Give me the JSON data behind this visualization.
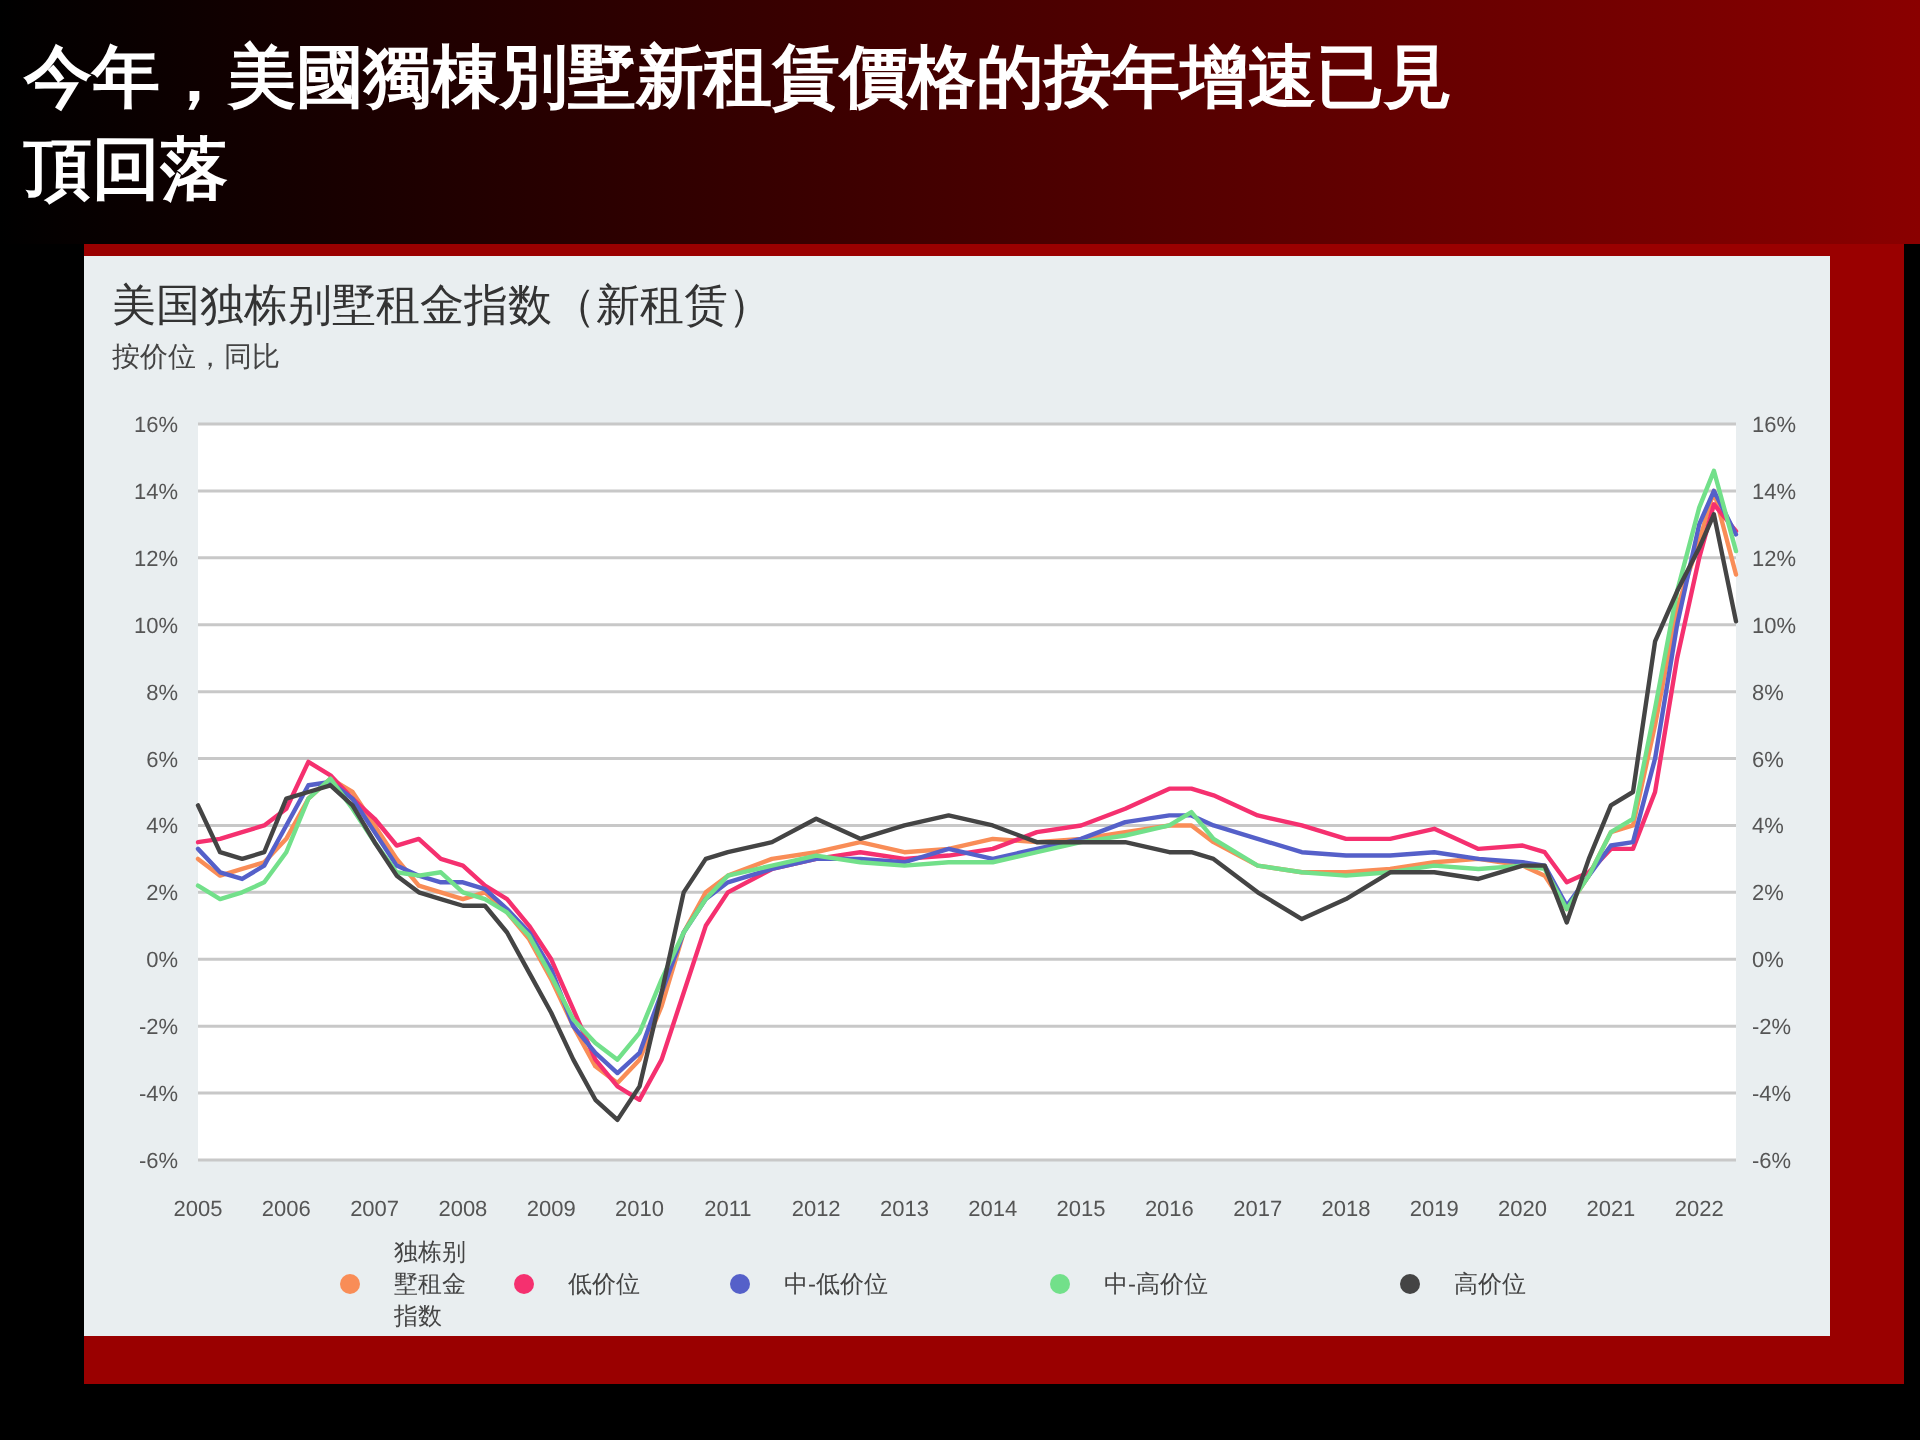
{
  "chart_data": {
    "type": "line",
    "title": "今年，美國獨棟別墅新租賃價格的按年增速已見頂回落",
    "subtitle": "美国独栋别墅租金指数（新租赁）",
    "annotations": [
      "按价位，同比"
    ],
    "xlim": [
      "2005-01",
      "2022-06"
    ],
    "xticks": [
      "2005",
      "2006",
      "2007",
      "2008",
      "2009",
      "2010",
      "2011",
      "2012",
      "2013",
      "2014",
      "2015",
      "2016",
      "2017",
      "2018",
      "2019",
      "2020",
      "2021",
      "2022"
    ],
    "ylim": [
      -6,
      16
    ],
    "yticks": [
      {
        "value": -6,
        "label": "-6%"
      },
      {
        "value": -4,
        "label": "-4%"
      },
      {
        "value": -2,
        "label": "-2%"
      },
      {
        "value": 0,
        "label": "0%"
      },
      {
        "value": 2,
        "label": "2%"
      },
      {
        "value": 4,
        "label": "4%"
      },
      {
        "value": 6,
        "label": "6%"
      },
      {
        "value": 8,
        "label": "8%"
      },
      {
        "value": 10,
        "label": "10%"
      },
      {
        "value": 12,
        "label": "12%"
      },
      {
        "value": 14,
        "label": "14%"
      },
      {
        "value": 16,
        "label": "16%"
      }
    ],
    "y2lim": [
      -6,
      16
    ],
    "y2ticks": [
      {
        "value": -6,
        "label": "-6%"
      },
      {
        "value": -4,
        "label": "-4%"
      },
      {
        "value": -2,
        "label": "-2%"
      },
      {
        "value": 0,
        "label": "0%"
      },
      {
        "value": 2,
        "label": "2%"
      },
      {
        "value": 4,
        "label": "4%"
      },
      {
        "value": 6,
        "label": "6%"
      },
      {
        "value": 8,
        "label": "8%"
      },
      {
        "value": 10,
        "label": "10%"
      },
      {
        "value": 12,
        "label": "12%"
      },
      {
        "value": 14,
        "label": "14%"
      },
      {
        "value": 16,
        "label": "16%"
      }
    ],
    "grid": "y",
    "legend": "bottom",
    "marker": "none",
    "line_style": "solid",
    "x": [
      "2005-01",
      "2005-04",
      "2005-07",
      "2005-10",
      "2006-01",
      "2006-04",
      "2006-07",
      "2006-10",
      "2007-01",
      "2007-04",
      "2007-07",
      "2007-10",
      "2008-01",
      "2008-04",
      "2008-07",
      "2008-10",
      "2009-01",
      "2009-04",
      "2009-07",
      "2009-10",
      "2010-01",
      "2010-04",
      "2010-07",
      "2010-10",
      "2011-01",
      "2011-07",
      "2012-01",
      "2012-07",
      "2013-01",
      "2013-07",
      "2014-01",
      "2014-07",
      "2015-01",
      "2015-07",
      "2016-01",
      "2016-04",
      "2016-07",
      "2017-01",
      "2017-07",
      "2018-01",
      "2018-07",
      "2019-01",
      "2019-07",
      "2020-01",
      "2020-04",
      "2020-07",
      "2020-10",
      "2021-01",
      "2021-04",
      "2021-07",
      "2021-10",
      "2022-01",
      "2022-03",
      "2022-06"
    ],
    "series": [
      {
        "name": "独栋别墅租金指数",
        "color": "#f98d57",
        "values": [
          3.0,
          2.5,
          2.7,
          2.9,
          3.6,
          4.8,
          5.4,
          5.0,
          4.0,
          3.0,
          2.2,
          2.0,
          1.8,
          2.0,
          1.4,
          0.6,
          -0.6,
          -2.0,
          -3.2,
          -3.7,
          -3.0,
          -1.4,
          0.8,
          2.0,
          2.5,
          3.0,
          3.2,
          3.5,
          3.2,
          3.3,
          3.6,
          3.5,
          3.6,
          3.8,
          4.0,
          4.0,
          3.5,
          2.8,
          2.6,
          2.6,
          2.7,
          2.9,
          3.0,
          2.8,
          2.5,
          1.5,
          2.5,
          3.8,
          4.0,
          7.0,
          10.5,
          12.5,
          14.0,
          11.5
        ]
      },
      {
        "name": "低价位",
        "color": "#f5306f",
        "values": [
          3.5,
          3.6,
          3.8,
          4.0,
          4.5,
          5.9,
          5.5,
          4.8,
          4.2,
          3.4,
          3.6,
          3.0,
          2.8,
          2.2,
          1.8,
          1.0,
          0.0,
          -1.5,
          -3.0,
          -3.8,
          -4.2,
          -3.0,
          -1.0,
          1.0,
          2.0,
          2.7,
          3.0,
          3.2,
          3.0,
          3.1,
          3.3,
          3.8,
          4.0,
          4.5,
          5.1,
          5.1,
          4.9,
          4.3,
          4.0,
          3.6,
          3.6,
          3.9,
          3.3,
          3.4,
          3.2,
          2.3,
          2.6,
          3.3,
          3.3,
          5.0,
          9.0,
          12.0,
          13.6,
          12.8
        ]
      },
      {
        "name": "中-低价位",
        "color": "#5560c9",
        "values": [
          3.3,
          2.6,
          2.4,
          2.8,
          4.0,
          5.2,
          5.3,
          4.8,
          3.8,
          2.8,
          2.5,
          2.3,
          2.3,
          2.1,
          1.5,
          0.8,
          -0.3,
          -2.0,
          -2.8,
          -3.4,
          -2.8,
          -1.0,
          0.8,
          1.8,
          2.3,
          2.7,
          3.0,
          3.0,
          2.9,
          3.3,
          3.0,
          3.3,
          3.6,
          4.1,
          4.3,
          4.3,
          4.0,
          3.6,
          3.2,
          3.1,
          3.1,
          3.2,
          3.0,
          2.9,
          2.8,
          1.6,
          2.5,
          3.4,
          3.5,
          6.0,
          10.0,
          13.0,
          14.0,
          12.7
        ]
      },
      {
        "name": "中-高价位",
        "color": "#72e08a",
        "values": [
          2.2,
          1.8,
          2.0,
          2.3,
          3.2,
          4.8,
          5.4,
          4.5,
          3.5,
          2.6,
          2.5,
          2.6,
          2.0,
          1.8,
          1.4,
          0.7,
          -0.5,
          -1.8,
          -2.5,
          -3.0,
          -2.2,
          -0.6,
          0.8,
          1.8,
          2.5,
          2.8,
          3.1,
          2.9,
          2.8,
          2.9,
          2.9,
          3.2,
          3.5,
          3.7,
          4.0,
          4.4,
          3.6,
          2.8,
          2.6,
          2.5,
          2.6,
          2.8,
          2.7,
          2.8,
          2.7,
          1.5,
          2.5,
          3.8,
          4.2,
          7.5,
          11.0,
          13.5,
          14.6,
          12.2
        ]
      },
      {
        "name": "高价位",
        "color": "#444444",
        "values": [
          4.6,
          3.2,
          3.0,
          3.2,
          4.8,
          5.0,
          5.2,
          4.6,
          3.5,
          2.5,
          2.0,
          1.8,
          1.6,
          1.6,
          0.8,
          -0.4,
          -1.6,
          -3.0,
          -4.2,
          -4.8,
          -3.8,
          -1.0,
          2.0,
          3.0,
          3.2,
          3.5,
          4.2,
          3.6,
          4.0,
          4.3,
          4.0,
          3.5,
          3.5,
          3.5,
          3.2,
          3.2,
          3.0,
          2.0,
          1.2,
          1.8,
          2.6,
          2.6,
          2.4,
          2.8,
          2.8,
          1.1,
          3.0,
          4.6,
          5.0,
          9.5,
          11.0,
          12.3,
          13.3,
          10.1
        ]
      }
    ]
  }
}
